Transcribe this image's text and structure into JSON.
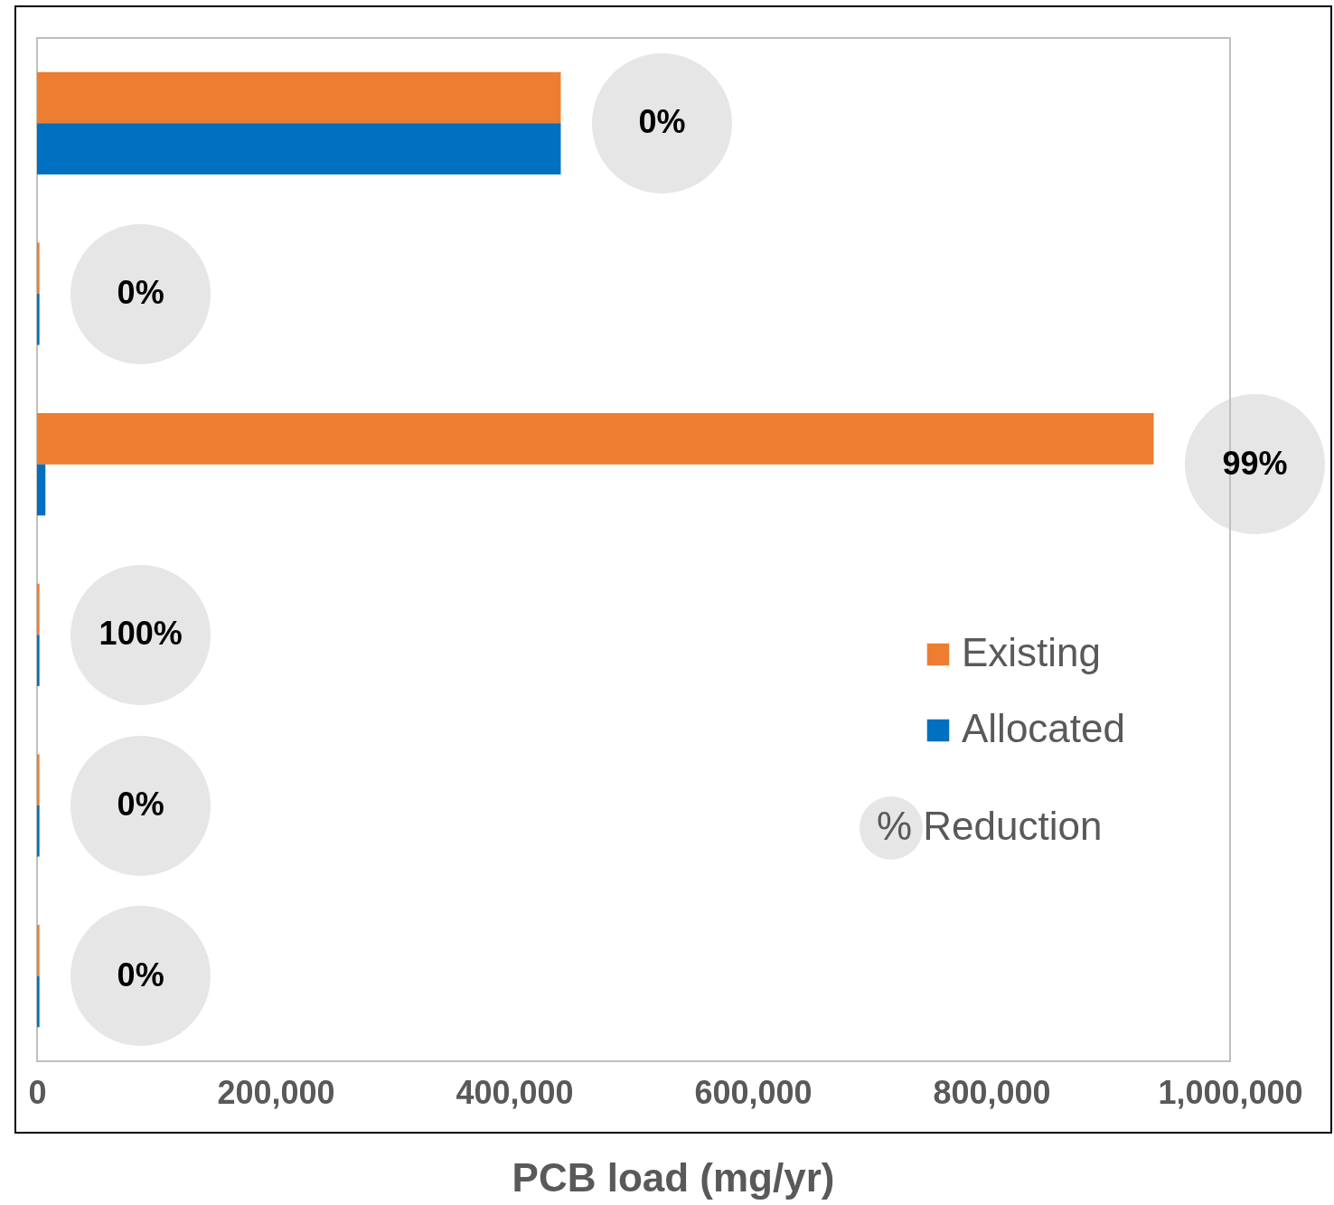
{
  "chart_data": {
    "type": "bar",
    "orientation": "horizontal",
    "xlabel": "PCB load (mg/yr)",
    "categories": [
      null,
      null,
      null,
      null,
      null,
      null
    ],
    "series": [
      {
        "name": "Existing",
        "color": "#ed7d31",
        "values": [
          439000,
          2000,
          936000,
          2000,
          2000,
          2000
        ]
      },
      {
        "name": "Allocated",
        "color": "#0070c0",
        "values": [
          439000,
          2000,
          7000,
          2000,
          2000,
          2000
        ]
      }
    ],
    "annotations": [
      "0%",
      "0%",
      "99%",
      "100%",
      "0%",
      "0%",
      "% Reduction"
    ],
    "xlim": [
      0,
      1000000
    ],
    "xticks": [
      0,
      {
        "value": 200000,
        "label": "200,000"
      },
      {
        "value": 400000,
        "label": "400,000"
      },
      {
        "value": 600000,
        "label": "600,000"
      },
      {
        "value": 800000,
        "label": "800,000"
      },
      {
        "value": 1000000,
        "label": "1,000,000"
      }
    ],
    "grid": false,
    "legend": "right"
  }
}
